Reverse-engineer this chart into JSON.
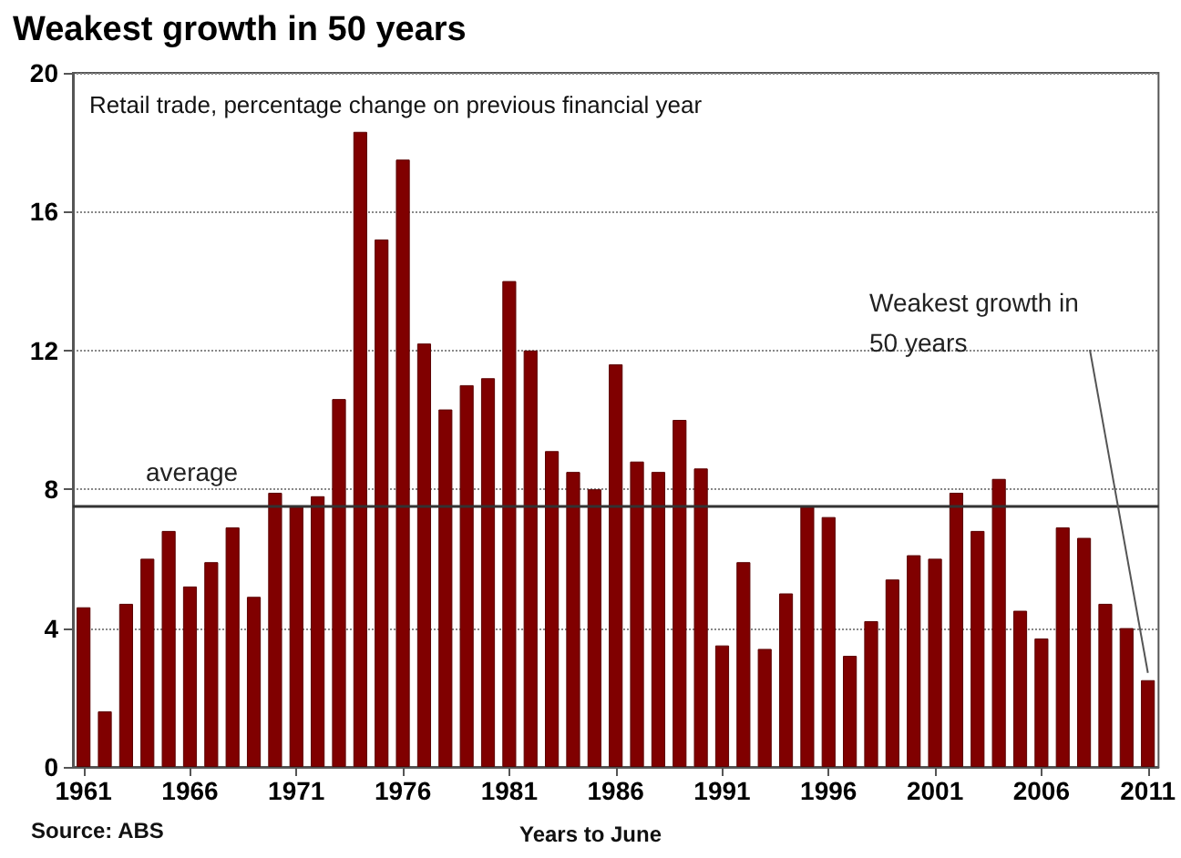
{
  "chart_data": {
    "type": "bar",
    "title": "Weakest growth in 50 years",
    "subtitle": "Retail trade, percentage change on previous financial year",
    "xlabel": "Years to June",
    "categories": [
      "1961",
      null,
      null,
      null,
      null,
      "1966",
      null,
      null,
      null,
      null,
      "1971",
      null,
      null,
      null,
      null,
      "1976",
      null,
      null,
      null,
      null,
      "1981",
      null,
      null,
      null,
      null,
      "1986",
      null,
      null,
      null,
      null,
      "1991",
      null,
      null,
      null,
      null,
      "1996",
      null,
      null,
      null,
      null,
      "2001",
      null,
      null,
      null,
      null,
      "2006",
      null,
      null,
      null,
      null,
      "2011"
    ],
    "values": [
      4.6,
      1.6,
      4.7,
      6.0,
      6.8,
      5.2,
      5.9,
      6.9,
      4.9,
      7.9,
      7.5,
      7.8,
      10.6,
      18.3,
      15.2,
      17.5,
      12.2,
      10.3,
      11.0,
      11.2,
      14.0,
      12.0,
      9.1,
      8.5,
      8.0,
      11.6,
      8.8,
      8.5,
      10.0,
      8.6,
      3.5,
      5.9,
      3.4,
      5.0,
      7.5,
      7.2,
      3.2,
      4.2,
      5.4,
      6.1,
      6.0,
      7.9,
      6.8,
      8.3,
      4.5,
      3.7,
      6.9,
      6.6,
      4.7,
      4.0,
      2.5
    ],
    "color": "#800000",
    "ylim": [
      0,
      20
    ],
    "yticks": [
      0,
      4,
      8,
      12,
      16,
      20
    ],
    "grid": "y",
    "ref_lines": [
      {
        "axis": "y",
        "value": 7.5,
        "label": "average",
        "color": "#333333"
      }
    ],
    "annotations": [
      {
        "text": "Weakest growth in\n50 years",
        "x": "2011",
        "y": 2.5
      },
      "Source: ABS"
    ]
  }
}
